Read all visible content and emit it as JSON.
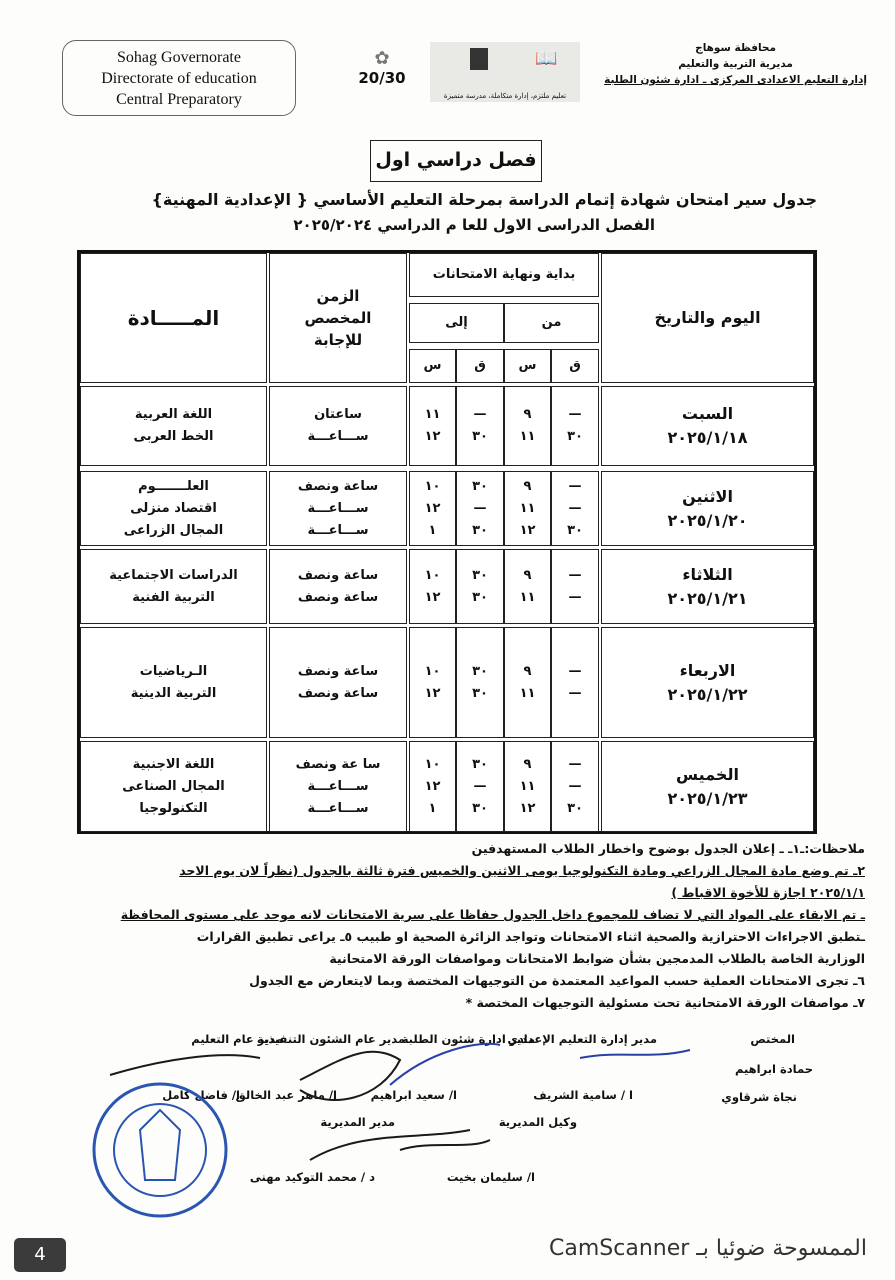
{
  "header": {
    "english": [
      "Sohag Governorate",
      "Directorate of education",
      "Central Preparatory"
    ],
    "arabic": [
      "محافظة سوهاج",
      "مديرية التربية والتعليم",
      "إدارة التعليم الاعدادى المركزى ـ ادارة شئون الطلبة"
    ],
    "logo_2030": "20/30",
    "logo_caption": "تعليم ملتزم، إدارة متكاملة، مدرسة متميزة"
  },
  "term_box": "فصل دراسي اول",
  "title": "جدول سير امتحان شهادة إتمام الدراسة بمرحلة التعليم الأساسي { الإعدادية المهنية}",
  "subtitle": "الفصل الدراسى الاول للعا م الدراسي   ٢٠٢٥/٢٠٢٤",
  "table": {
    "headers": {
      "day": "اليوم والتاريخ",
      "start_end": "بداية ونهاية الامتحانات",
      "from": "من",
      "to": "إلى",
      "min": "ق",
      "hour": "س",
      "duration": "الزمن المخصص للإجابة",
      "subject": "المـــــادة"
    },
    "rows": [
      {
        "day": "السبت",
        "date": "٢٠٢٥/١/١٨",
        "from_min": [
          "—",
          "٣٠"
        ],
        "from_hour": [
          "٩",
          "١١"
        ],
        "to_min": [
          "—",
          "٣٠"
        ],
        "to_hour": [
          "١١",
          "١٢"
        ],
        "duration": [
          "ساعتان",
          "ســـاعـــة"
        ],
        "subjects": [
          "اللغة العربية",
          "الخط العربى"
        ]
      },
      {
        "day": "الاثنين",
        "date": "٢٠٢٥/١/٢٠",
        "from_min": [
          "—",
          "—",
          "٣٠"
        ],
        "from_hour": [
          "٩",
          "١١",
          "١٢"
        ],
        "to_min": [
          "٣٠",
          "—",
          "٣٠"
        ],
        "to_hour": [
          "١٠",
          "١٢",
          "١"
        ],
        "duration": [
          "ساعة ونصف",
          "ســـاعـــة",
          "ســـاعـــة"
        ],
        "subjects": [
          "العلـــــــوم",
          "اقتصاد منزلى",
          "المجال الزراعى"
        ]
      },
      {
        "day": "الثلاثاء",
        "date": "٢٠٢٥/١/٢١",
        "from_min": [
          "—",
          "—"
        ],
        "from_hour": [
          "٩",
          "١١"
        ],
        "to_min": [
          "٣٠",
          "٣٠"
        ],
        "to_hour": [
          "١٠",
          "١٢"
        ],
        "duration": [
          "ساعة ونصف",
          "ساعة ونصف"
        ],
        "subjects": [
          "الدراسات الاجتماعية",
          "التربية الفنية"
        ]
      },
      {
        "day": "الاربعاء",
        "date": "٢٠٢٥/١/٢٢",
        "from_min": [
          "—",
          "—"
        ],
        "from_hour": [
          "٩",
          "١١"
        ],
        "to_min": [
          "٣٠",
          "٣٠"
        ],
        "to_hour": [
          "١٠",
          "١٢"
        ],
        "duration": [
          "ساعة ونصف",
          "ساعة ونصف"
        ],
        "subjects": [
          "الـرياضيات",
          "التربية الدينية"
        ]
      },
      {
        "day": "الخميس",
        "date": "٢٠٢٥/١/٢٣",
        "from_min": [
          "—",
          "—",
          "٣٠"
        ],
        "from_hour": [
          "٩",
          "١١",
          "١٢"
        ],
        "to_min": [
          "٣٠",
          "—",
          "٣٠"
        ],
        "to_hour": [
          "١٠",
          "١٢",
          "١"
        ],
        "duration": [
          "سا عة ونصف",
          "ســـاعـــة",
          "ســـاعـــة"
        ],
        "subjects": [
          "اللغة الاجنبية",
          "المجال الصناعى",
          "التكنولوجيا"
        ]
      }
    ]
  },
  "notes": [
    "ملاحظات:ـ١ـ ـ إعلان  الجدول بوضوح  واخطار الطلاب المستهدفين",
    "٢ـ تم وضع مادة المجال الزراعي ومادة التكنولوجيا   يومى الاثنين والخميس فترة ثالثة بالجدول (نظراً لان يوم الاحد",
    "٢٠٢٥/١/١ اجازة للأخوة الاقباط )",
    "ـ تم الابقاء على المواد التي لا تضاف للمجموع داخل الجدول حفاظا على سرية الامتحانات  لانه موحد على مستوى المحافظة",
    "ـتطبق الاجراءات الاحترازية والصحية اثناء الامتحانات  وتواجد الزائرة الصحية او طبيب  ٥ـ  يراعى تطبيق القرارات",
    "الوزارية الخاصة بالطلاب المدمجين بشأن ضوابط الامتحانات ومواصفات الورقة الامتحانية",
    "٦ـ تجرى الامتحانات العملية حسب المواعيد المعتمدة من التوجيهات المختصة وبما لايتعارض مع الجدول",
    "٧ـ مواصفات الورقة الامتحانية تحت مسئولية التوجيهات المختصة *"
  ],
  "signatures": {
    "titles": [
      "المختص",
      "مدير إدارة التعليم الإعدادي",
      "مدير ادارة شئون الطلبة",
      "مدير عام الشئون التنفيذية",
      "مدير عام التعليم"
    ],
    "specialists": [
      "حمادة ابراهيم",
      "نجاة شرقاوي"
    ],
    "names": [
      "ا / سامية الشريف",
      "ا/ سعيد ابراهيم",
      "ا/ ماهر عبد الخالق",
      "ا/ فاضل كامل"
    ],
    "roles": [
      "وكيل المديرية",
      "مدير المديرية"
    ],
    "names2": [
      "ا/ سليمان بخيت",
      "د / محمد التوكيد مهنى"
    ]
  },
  "footer": {
    "page": "4",
    "scanner": "الممسوحة ضوئيا بـ CamScanner"
  },
  "colors": {
    "ink": "#111111",
    "stamp": "#2a55b0",
    "signature": "#2b3fa8"
  }
}
